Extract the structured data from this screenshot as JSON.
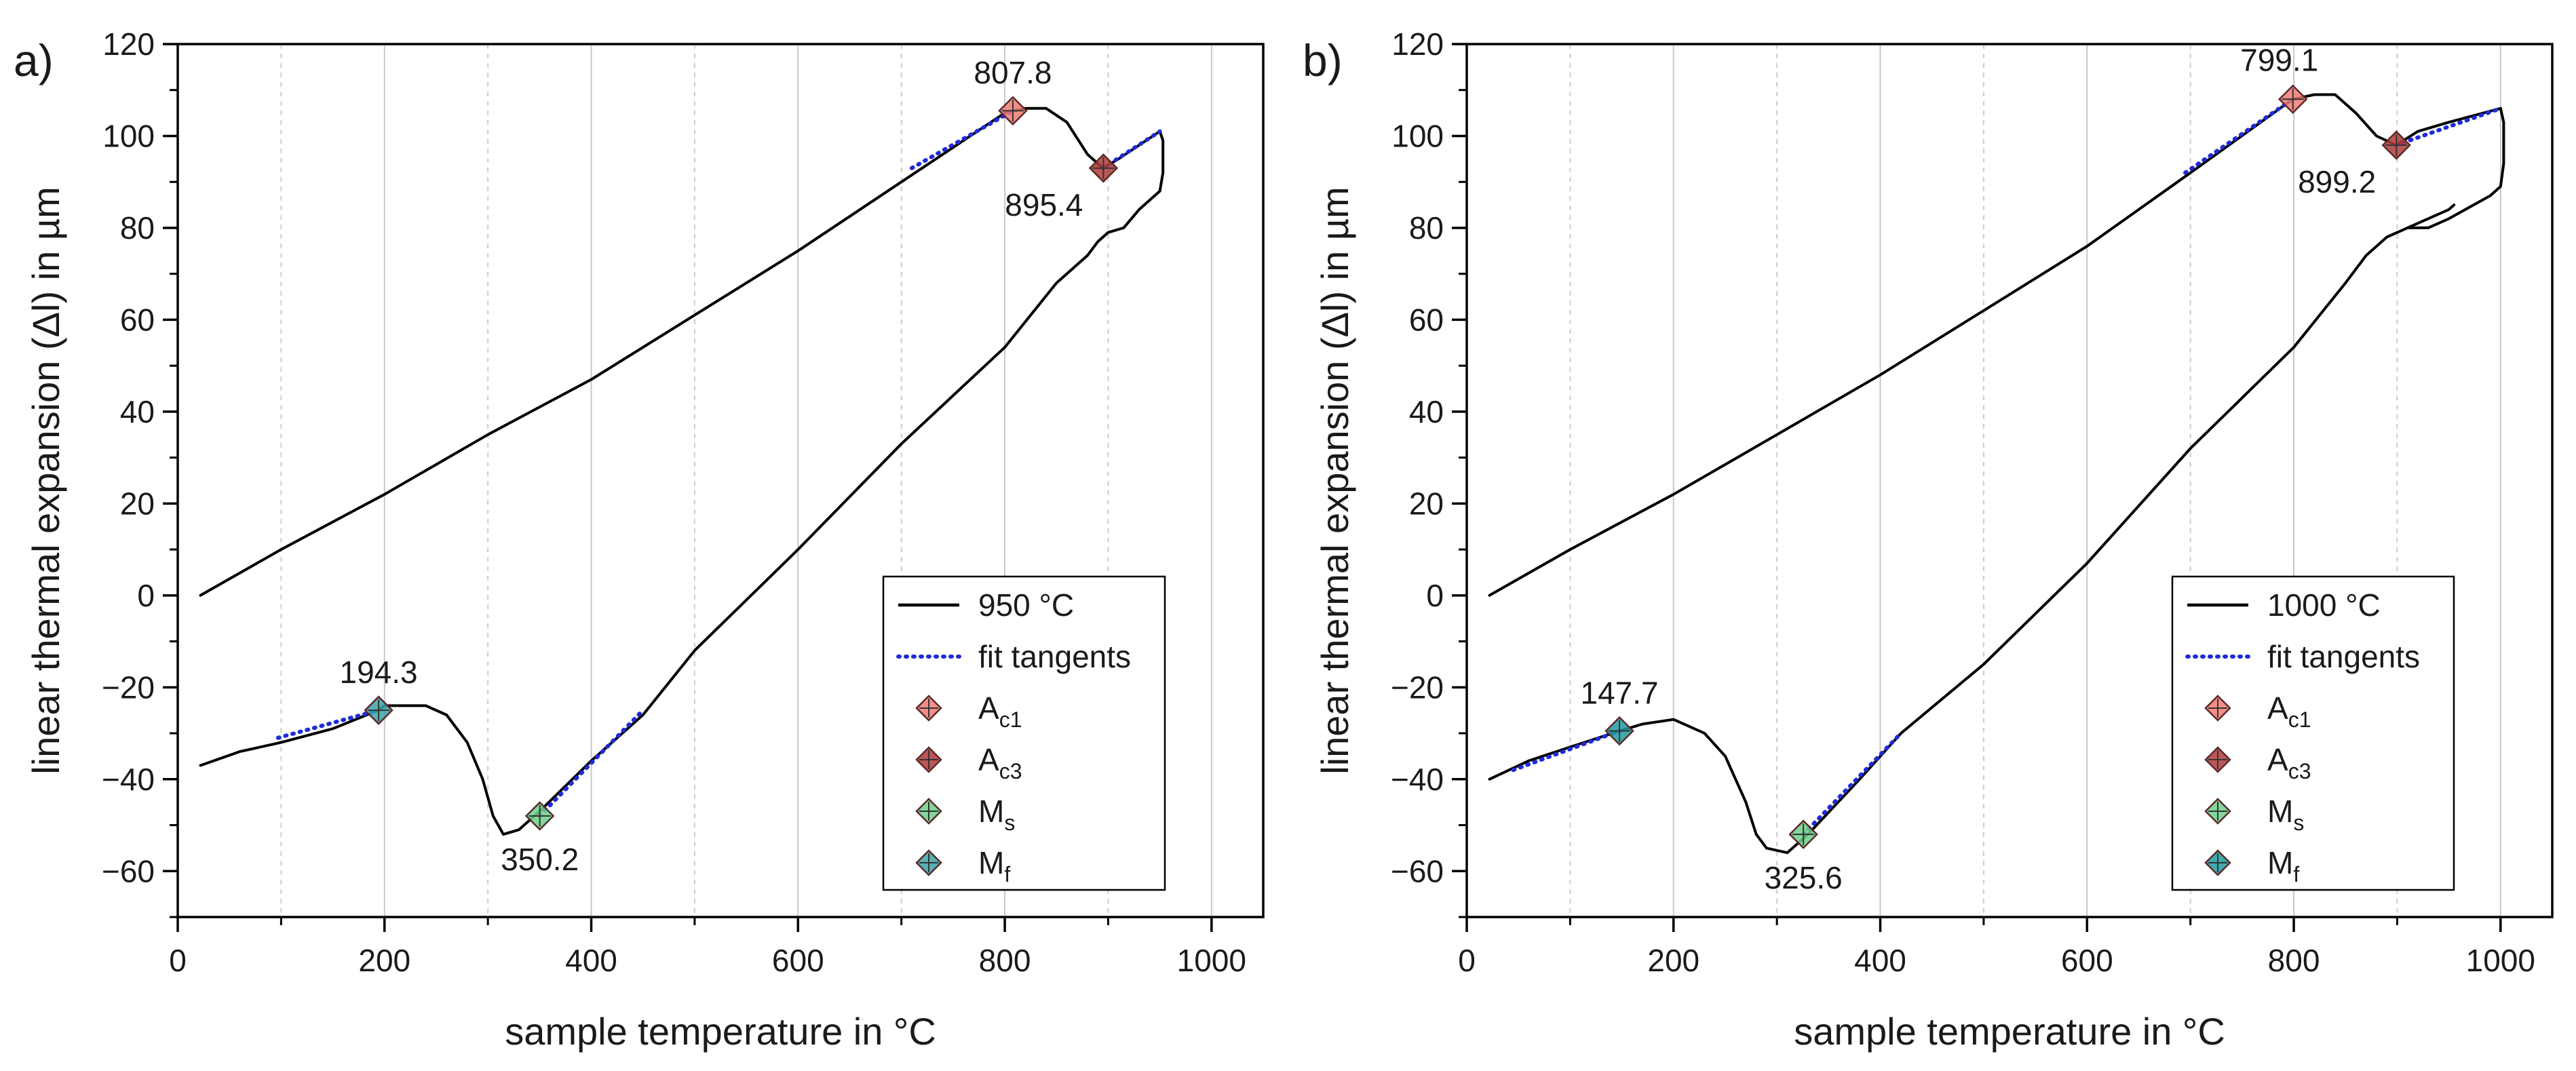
{
  "chart_data": [
    {
      "type": "line",
      "panel_label": "a)",
      "xlabel": "sample temperature in °C",
      "ylabel": "linear thermal expansion (Δl) in µm",
      "xlim": [
        0,
        1050
      ],
      "ylim": [
        -70,
        120
      ],
      "xticks": [
        0,
        200,
        400,
        600,
        800,
        1000
      ],
      "yticks": [
        -60,
        -40,
        -20,
        0,
        20,
        40,
        60,
        80,
        100,
        120
      ],
      "grid_x_minor": [
        100,
        300,
        500,
        700,
        900
      ],
      "legend": {
        "position": "bottom-right",
        "entries": [
          {
            "label": "950 °C",
            "kind": "line",
            "color": "#000000"
          },
          {
            "label": "fit tangents",
            "kind": "dotted",
            "color": "#1f2bd9"
          },
          {
            "label": "A",
            "sub": "c1",
            "kind": "marker",
            "color": "#f07a73"
          },
          {
            "label": "A",
            "sub": "c3",
            "kind": "marker",
            "color": "#b03a3a"
          },
          {
            "label": "M",
            "sub": "s",
            "kind": "marker",
            "color": "#6fd08a"
          },
          {
            "label": "M",
            "sub": "f",
            "kind": "marker",
            "color": "#3aa3a8"
          }
        ]
      },
      "series": [
        {
          "name": "heating",
          "color": "#000000",
          "x": [
            22,
            100,
            200,
            300,
            400,
            500,
            600,
            700,
            800,
            820,
            840,
            860,
            880,
            895,
            910,
            930,
            950
          ],
          "y": [
            0,
            10,
            22,
            35,
            47,
            61,
            75,
            90,
            105,
            106,
            106,
            103,
            96,
            93,
            95,
            98,
            101
          ]
        },
        {
          "name": "hold_drop",
          "color": "#000000",
          "x": [
            950,
            953,
            953,
            950,
            945
          ],
          "y": [
            101,
            99,
            92,
            88,
            87
          ]
        },
        {
          "name": "cooling",
          "color": "#000000",
          "x": [
            945,
            930,
            915,
            900,
            890,
            880,
            850,
            800,
            700,
            600,
            500,
            450,
            400,
            350,
            330,
            315,
            305,
            295,
            280,
            260,
            240,
            220,
            200,
            194,
            150,
            100,
            60,
            22
          ],
          "y": [
            87,
            84,
            80,
            79,
            77,
            74,
            68,
            54,
            33,
            10,
            -12,
            -26,
            -36,
            -47,
            -51,
            -52,
            -48,
            -40,
            -32,
            -26,
            -24,
            -24,
            -24,
            -25,
            -29,
            -32,
            -34,
            -37
          ]
        }
      ],
      "tangents": [
        {
          "x": [
            710,
            808
          ],
          "y": [
            93,
            105.5
          ]
        },
        {
          "x": [
            895,
            950
          ],
          "y": [
            93,
            101
          ]
        },
        {
          "x": [
            97,
            194
          ],
          "y": [
            -31,
            -25
          ]
        },
        {
          "x": [
            350,
            450
          ],
          "y": [
            -48,
            -25
          ]
        }
      ],
      "points": [
        {
          "name": "Ac1",
          "x": 807.8,
          "y": 105.5,
          "color": "#f07a73",
          "label": "807.8",
          "label_pos": "above"
        },
        {
          "name": "Ac3",
          "x": 895.4,
          "y": 93,
          "color": "#b03a3a",
          "label": "895.4",
          "label_pos": "below-left"
        },
        {
          "name": "Mf",
          "x": 194.3,
          "y": -25,
          "color": "#3aa3a8",
          "label": "194.3",
          "label_pos": "above"
        },
        {
          "name": "Ms",
          "x": 350.2,
          "y": -48,
          "color": "#6fd08a",
          "label": "350.2",
          "label_pos": "below"
        }
      ]
    },
    {
      "type": "line",
      "panel_label": "b)",
      "xlabel": "sample temperature in °C",
      "ylabel": "linear thermal expansion (Δl) in µm",
      "xlim": [
        0,
        1050
      ],
      "ylim": [
        -70,
        120
      ],
      "xticks": [
        0,
        200,
        400,
        600,
        800,
        1000
      ],
      "yticks": [
        -60,
        -40,
        -20,
        0,
        20,
        40,
        60,
        80,
        100,
        120
      ],
      "grid_x_minor": [
        100,
        300,
        500,
        700,
        900
      ],
      "legend": {
        "position": "bottom-right",
        "entries": [
          {
            "label": "1000 °C",
            "kind": "line",
            "color": "#000000"
          },
          {
            "label": "fit tangents",
            "kind": "dotted",
            "color": "#1f2bd9"
          },
          {
            "label": "A",
            "sub": "c1",
            "kind": "marker",
            "color": "#f07a73"
          },
          {
            "label": "A",
            "sub": "c3",
            "kind": "marker",
            "color": "#b03a3a"
          },
          {
            "label": "M",
            "sub": "s",
            "kind": "marker",
            "color": "#6fd08a"
          },
          {
            "label": "M",
            "sub": "f",
            "kind": "marker",
            "color": "#1f9aa0"
          }
        ]
      },
      "series": [
        {
          "name": "heating",
          "color": "#000000",
          "x": [
            22,
            100,
            200,
            300,
            400,
            500,
            600,
            700,
            799,
            820,
            840,
            860,
            880,
            899,
            920,
            950,
            1000
          ],
          "y": [
            0,
            10,
            22,
            35,
            48,
            62,
            76,
            92,
            108,
            109,
            109,
            105,
            100,
            98,
            101,
            103,
            106
          ]
        },
        {
          "name": "hold_drop",
          "color": "#000000",
          "x": [
            1000,
            1003,
            1003,
            1000,
            990
          ],
          "y": [
            106,
            103,
            94,
            89,
            87
          ]
        },
        {
          "name": "cooling",
          "color": "#000000",
          "x": [
            990,
            950,
            930,
            910,
            890,
            870,
            850,
            800,
            700,
            600,
            500,
            420,
            380,
            330,
            310,
            290,
            280,
            270,
            250,
            230,
            200,
            170,
            147.7,
            100,
            60,
            22
          ],
          "y": [
            87,
            82,
            80,
            80,
            78,
            74,
            68,
            54,
            32,
            7,
            -15,
            -30,
            -40,
            -52,
            -56,
            -55,
            -52,
            -45,
            -35,
            -30,
            -27,
            -28,
            -29.5,
            -33,
            -36,
            -40
          ]
        },
        {
          "name": "cooling_loop",
          "color": "#000000",
          "x": [
            910,
            930,
            950,
            955
          ],
          "y": [
            80,
            82,
            84,
            85
          ]
        }
      ],
      "tangents": [
        {
          "x": [
            695,
            799
          ],
          "y": [
            92,
            108
          ]
        },
        {
          "x": [
            899,
            1000
          ],
          "y": [
            98,
            106
          ]
        },
        {
          "x": [
            45,
            147.7
          ],
          "y": [
            -38,
            -29.5
          ]
        },
        {
          "x": [
            325.6,
            420
          ],
          "y": [
            -52,
            -30
          ]
        }
      ],
      "points": [
        {
          "name": "Ac1",
          "x": 799.1,
          "y": 108,
          "color": "#f07a73",
          "label": "799.1",
          "label_pos": "above-left"
        },
        {
          "name": "Ac3",
          "x": 899.2,
          "y": 98,
          "color": "#b03a3a",
          "label": "899.2",
          "label_pos": "below-left"
        },
        {
          "name": "Mf",
          "x": 147.7,
          "y": -29.5,
          "color": "#1f9aa0",
          "label": "147.7",
          "label_pos": "above"
        },
        {
          "name": "Ms",
          "x": 325.6,
          "y": -52,
          "color": "#6fd08a",
          "label": "325.6",
          "label_pos": "below"
        }
      ]
    }
  ]
}
